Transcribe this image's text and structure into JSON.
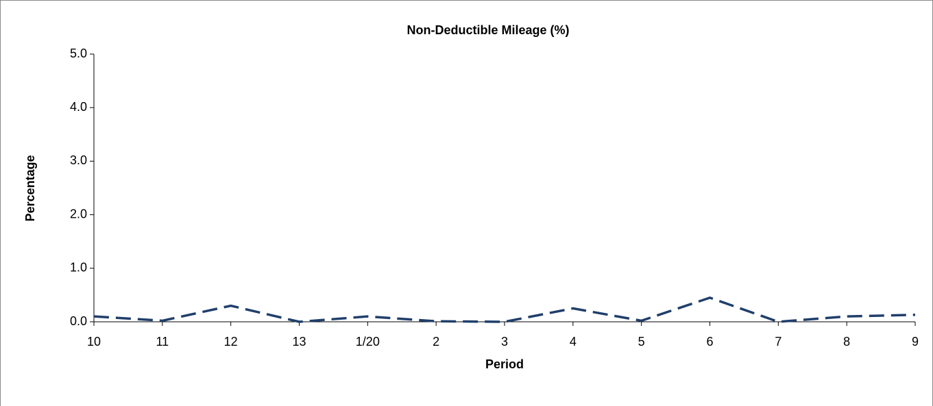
{
  "chart_data": {
    "type": "line",
    "title": "Non-Deductible Mileage (%)",
    "x_label": "Period",
    "y_label": "Percentage",
    "categories": [
      "10",
      "11",
      "12",
      "13",
      "1/20",
      "2",
      "3",
      "4",
      "5",
      "6",
      "7",
      "8",
      "9"
    ],
    "series": [
      {
        "name": "Non-Deductible Mileage",
        "color": "#203f6b",
        "values": [
          0.1,
          0.02,
          0.3,
          0.0,
          0.1,
          0.01,
          0.0,
          0.25,
          0.02,
          0.45,
          0.0,
          0.1,
          0.13
        ]
      }
    ],
    "ylim": [
      0,
      5
    ],
    "yticks": [
      {
        "value": 0,
        "label": "0.0"
      },
      {
        "value": 1,
        "label": "1.0"
      },
      {
        "value": 2,
        "label": "2.0"
      },
      {
        "value": 3,
        "label": "3.0"
      },
      {
        "value": 4,
        "label": "4.0"
      },
      {
        "value": 5,
        "label": "5.0"
      }
    ]
  }
}
